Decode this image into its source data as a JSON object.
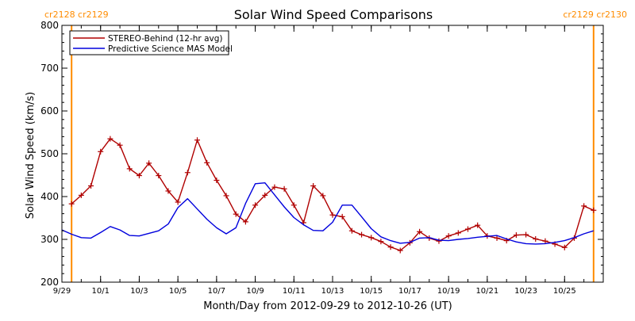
{
  "colors": {
    "stereo": "#b00000",
    "model": "#0000dd",
    "carrington": "#ff8c00",
    "axis": "#000000"
  },
  "chart_data": {
    "type": "line",
    "title": "Solar Wind Speed Comparisons",
    "xlabel": "Month/Day from 2012-09-29 to 2012-10-26 (UT)",
    "ylabel": "Solar Wind Speed (km/s)",
    "x_range": [
      "2012-09-29",
      "2012-10-27"
    ],
    "ylim": [
      200,
      800
    ],
    "yticks": [
      200,
      300,
      400,
      500,
      600,
      700,
      800
    ],
    "xticks": [
      {
        "date": "2012-09-29",
        "label": "9/29"
      },
      {
        "date": "2012-10-01",
        "label": "10/1"
      },
      {
        "date": "2012-10-03",
        "label": "10/3"
      },
      {
        "date": "2012-10-05",
        "label": "10/5"
      },
      {
        "date": "2012-10-07",
        "label": "10/7"
      },
      {
        "date": "2012-10-09",
        "label": "10/9"
      },
      {
        "date": "2012-10-11",
        "label": "10/11"
      },
      {
        "date": "2012-10-13",
        "label": "10/13"
      },
      {
        "date": "2012-10-15",
        "label": "10/15"
      },
      {
        "date": "2012-10-17",
        "label": "10/17"
      },
      {
        "date": "2012-10-19",
        "label": "10/19"
      },
      {
        "date": "2012-10-21",
        "label": "10/21"
      },
      {
        "date": "2012-10-23",
        "label": "10/23"
      },
      {
        "date": "2012-10-25",
        "label": "10/25"
      }
    ],
    "legend_position": "top-left",
    "carrington_markers": [
      {
        "date": "2012-09-29 12:00",
        "label": "cr2128 cr2129",
        "side": "left"
      },
      {
        "date": "2012-10-26 12:00",
        "label": "cr2129 cr2130",
        "side": "right"
      }
    ],
    "series": [
      {
        "name": "STEREO-Behind (12-hr avg)",
        "markers": true,
        "points": [
          [
            "2012-09-29 12:00",
            383
          ],
          [
            "2012-09-30 00:00",
            403
          ],
          [
            "2012-09-30 12:00",
            425
          ],
          [
            "2012-10-01 00:00",
            505
          ],
          [
            "2012-10-01 12:00",
            535
          ],
          [
            "2012-10-02 00:00",
            520
          ],
          [
            "2012-10-02 12:00",
            465
          ],
          [
            "2012-10-03 00:00",
            449
          ],
          [
            "2012-10-03 12:00",
            478
          ],
          [
            "2012-10-04 00:00",
            449
          ],
          [
            "2012-10-04 12:00",
            413
          ],
          [
            "2012-10-05 00:00",
            387
          ],
          [
            "2012-10-05 12:00",
            456
          ],
          [
            "2012-10-06 00:00",
            532
          ],
          [
            "2012-10-06 12:00",
            479
          ],
          [
            "2012-10-07 00:00",
            438
          ],
          [
            "2012-10-07 12:00",
            402
          ],
          [
            "2012-10-08 00:00",
            359
          ],
          [
            "2012-10-08 12:00",
            341
          ],
          [
            "2012-10-09 00:00",
            380
          ],
          [
            "2012-10-09 12:00",
            403
          ],
          [
            "2012-10-10 00:00",
            422
          ],
          [
            "2012-10-10 12:00",
            418
          ],
          [
            "2012-10-11 00:00",
            380
          ],
          [
            "2012-10-11 12:00",
            339
          ],
          [
            "2012-10-12 00:00",
            425
          ],
          [
            "2012-10-12 12:00",
            402
          ],
          [
            "2012-10-13 00:00",
            357
          ],
          [
            "2012-10-13 12:00",
            353
          ],
          [
            "2012-10-14 00:00",
            320
          ],
          [
            "2012-10-14 12:00",
            311
          ],
          [
            "2012-10-15 00:00",
            304
          ],
          [
            "2012-10-15 12:00",
            295
          ],
          [
            "2012-10-16 00:00",
            282
          ],
          [
            "2012-10-16 12:00",
            274
          ],
          [
            "2012-10-17 00:00",
            292
          ],
          [
            "2012-10-17 12:00",
            318
          ],
          [
            "2012-10-18 00:00",
            303
          ],
          [
            "2012-10-18 12:00",
            296
          ],
          [
            "2012-10-19 00:00",
            308
          ],
          [
            "2012-10-19 12:00",
            315
          ],
          [
            "2012-10-20 00:00",
            324
          ],
          [
            "2012-10-20 12:00",
            333
          ],
          [
            "2012-10-21 00:00",
            308
          ],
          [
            "2012-10-21 12:00",
            303
          ],
          [
            "2012-10-22 00:00",
            297
          ],
          [
            "2012-10-22 12:00",
            310
          ],
          [
            "2012-10-23 00:00",
            311
          ],
          [
            "2012-10-23 12:00",
            301
          ],
          [
            "2012-10-24 00:00",
            296
          ],
          [
            "2012-10-24 12:00",
            289
          ],
          [
            "2012-10-25 00:00",
            281
          ],
          [
            "2012-10-25 12:00",
            303
          ],
          [
            "2012-10-26 00:00",
            378
          ],
          [
            "2012-10-26 12:00",
            368
          ]
        ]
      },
      {
        "name": "Predictive Science MAS Model",
        "markers": false,
        "points": [
          [
            "2012-09-29 00:00",
            322
          ],
          [
            "2012-09-29 12:00",
            312
          ],
          [
            "2012-09-30 00:00",
            304
          ],
          [
            "2012-09-30 12:00",
            303
          ],
          [
            "2012-10-01 00:00",
            316
          ],
          [
            "2012-10-01 12:00",
            330
          ],
          [
            "2012-10-02 00:00",
            322
          ],
          [
            "2012-10-02 12:00",
            309
          ],
          [
            "2012-10-03 00:00",
            308
          ],
          [
            "2012-10-03 12:00",
            314
          ],
          [
            "2012-10-04 00:00",
            320
          ],
          [
            "2012-10-04 12:00",
            336
          ],
          [
            "2012-10-05 00:00",
            374
          ],
          [
            "2012-10-05 12:00",
            395
          ],
          [
            "2012-10-06 00:00",
            371
          ],
          [
            "2012-10-06 12:00",
            347
          ],
          [
            "2012-10-07 00:00",
            327
          ],
          [
            "2012-10-07 12:00",
            313
          ],
          [
            "2012-10-08 00:00",
            327
          ],
          [
            "2012-10-08 12:00",
            384
          ],
          [
            "2012-10-09 00:00",
            430
          ],
          [
            "2012-10-09 12:00",
            432
          ],
          [
            "2012-10-10 00:00",
            404
          ],
          [
            "2012-10-10 12:00",
            376
          ],
          [
            "2012-10-11 00:00",
            351
          ],
          [
            "2012-10-11 12:00",
            334
          ],
          [
            "2012-10-12 00:00",
            321
          ],
          [
            "2012-10-12 12:00",
            320
          ],
          [
            "2012-10-13 00:00",
            340
          ],
          [
            "2012-10-13 12:00",
            380
          ],
          [
            "2012-10-14 00:00",
            380
          ],
          [
            "2012-10-14 12:00",
            353
          ],
          [
            "2012-10-15 00:00",
            325
          ],
          [
            "2012-10-15 12:00",
            306
          ],
          [
            "2012-10-16 00:00",
            297
          ],
          [
            "2012-10-16 12:00",
            291
          ],
          [
            "2012-10-17 00:00",
            293
          ],
          [
            "2012-10-17 12:00",
            303
          ],
          [
            "2012-10-18 00:00",
            304
          ],
          [
            "2012-10-18 12:00",
            298
          ],
          [
            "2012-10-19 00:00",
            297
          ],
          [
            "2012-10-19 12:00",
            300
          ],
          [
            "2012-10-20 00:00",
            302
          ],
          [
            "2012-10-20 12:00",
            305
          ],
          [
            "2012-10-21 00:00",
            307
          ],
          [
            "2012-10-21 12:00",
            309
          ],
          [
            "2012-10-22 00:00",
            301
          ],
          [
            "2012-10-22 12:00",
            294
          ],
          [
            "2012-10-23 00:00",
            290
          ],
          [
            "2012-10-23 12:00",
            289
          ],
          [
            "2012-10-24 00:00",
            290
          ],
          [
            "2012-10-24 12:00",
            293
          ],
          [
            "2012-10-25 00:00",
            297
          ],
          [
            "2012-10-25 12:00",
            304
          ],
          [
            "2012-10-26 00:00",
            313
          ],
          [
            "2012-10-26 12:00",
            320
          ]
        ]
      }
    ]
  }
}
